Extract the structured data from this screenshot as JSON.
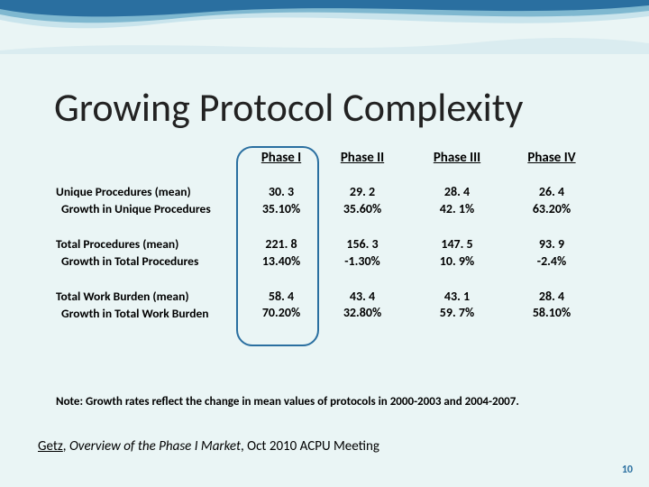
{
  "title": "Growing Protocol Complexity",
  "columns": [
    "Phase I",
    "Phase II",
    "Phase III",
    "Phase IV"
  ],
  "groups": [
    {
      "rows": [
        {
          "label": "Unique Procedures (mean)",
          "values": [
            "30. 3",
            "29. 2",
            "28. 4",
            "26. 4"
          ]
        },
        {
          "label": "Growth in Unique Procedures",
          "indent": true,
          "values": [
            "35.10%",
            "35.60%",
            "42. 1%",
            "63.20%"
          ]
        }
      ]
    },
    {
      "rows": [
        {
          "label": "Total Procedures (mean)",
          "values": [
            "221. 8",
            "156. 3",
            "147. 5",
            "93. 9"
          ]
        },
        {
          "label": "Growth in Total Procedures",
          "indent": true,
          "values": [
            "13.40%",
            "-1.30%",
            "10. 9%",
            "-2.4%"
          ]
        }
      ]
    },
    {
      "rows": [
        {
          "label": "Total Work Burden (mean)",
          "values": [
            "58. 4",
            "43. 4",
            "43. 1",
            "28. 4"
          ]
        },
        {
          "label": "Growth in Total Work Burden",
          "indent": true,
          "values": [
            "70.20%",
            "32.80%",
            "59. 7%",
            "58.10%"
          ]
        }
      ]
    }
  ],
  "note": "Note: Growth rates reflect the change in mean values of protocols in 2000-2003 and 2004-2007.",
  "citation": {
    "author": "Getz",
    "title": "Overview of the Phase I Market",
    "suffix": ", Oct 2010 ACPU Meeting"
  },
  "page_number": "10",
  "colors": {
    "background": "#eaf5f5",
    "wave_dark": "#2a6fa0",
    "wave_mid": "#7fb8d0",
    "wave_light": "#c9e4ec",
    "highlight_border": "#2a6fa0"
  }
}
